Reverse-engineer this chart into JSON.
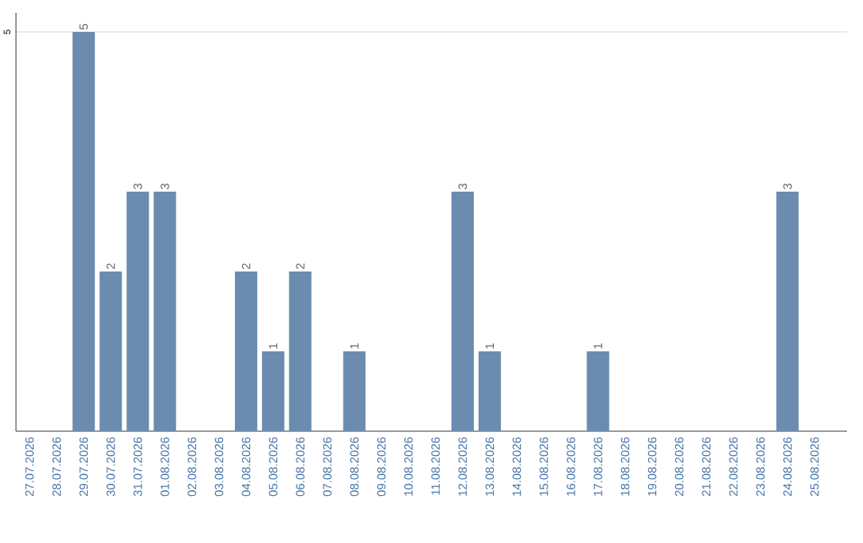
{
  "chart_data": {
    "type": "bar",
    "categories": [
      "27.07.2026",
      "28.07.2026",
      "29.07.2026",
      "30.07.2026",
      "31.07.2026",
      "01.08.2026",
      "02.08.2026",
      "03.08.2026",
      "04.08.2026",
      "05.08.2026",
      "06.08.2026",
      "07.08.2026",
      "08.08.2026",
      "09.08.2026",
      "10.08.2026",
      "11.08.2026",
      "12.08.2026",
      "13.08.2026",
      "14.08.2026",
      "15.08.2026",
      "16.08.2026",
      "17.08.2026",
      "18.08.2026",
      "19.08.2026",
      "20.08.2026",
      "21.08.2026",
      "22.08.2026",
      "23.08.2026",
      "24.08.2026",
      "25.08.2026"
    ],
    "values": [
      0,
      0,
      5,
      2,
      3,
      3,
      0,
      0,
      2,
      1,
      2,
      0,
      1,
      0,
      0,
      0,
      3,
      1,
      0,
      0,
      0,
      1,
      0,
      0,
      0,
      0,
      0,
      0,
      3,
      0
    ],
    "value_labels": [
      null,
      null,
      "5",
      "2",
      "3",
      "3",
      null,
      null,
      "2",
      "1",
      "2",
      null,
      "1",
      null,
      null,
      null,
      "3",
      "1",
      null,
      null,
      null,
      "1",
      null,
      null,
      null,
      null,
      null,
      null,
      "3",
      null
    ],
    "color": "#6b8cae",
    "ylim": [
      0,
      5.24
    ],
    "yticks": [
      5
    ],
    "grid": "y"
  }
}
